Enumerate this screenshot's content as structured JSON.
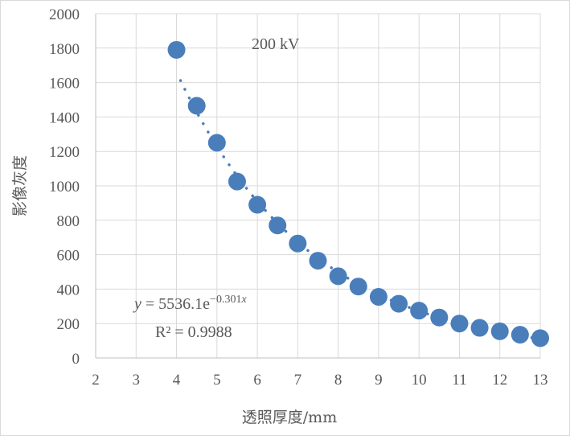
{
  "chart_data": {
    "type": "scatter",
    "title": "",
    "xlabel": "透照厚度/mm",
    "ylabel": "影像灰度",
    "xlim": [
      2,
      13
    ],
    "ylim": [
      0,
      2000
    ],
    "x_ticks": [
      2,
      3,
      4,
      5,
      6,
      7,
      8,
      9,
      10,
      11,
      12,
      13
    ],
    "y_ticks": [
      0,
      200,
      400,
      600,
      800,
      1000,
      1200,
      1400,
      1600,
      1800,
      2000
    ],
    "grid": true,
    "legend": "none",
    "series": [
      {
        "color": "#4a7ebb",
        "marker": "circle",
        "x": [
          4,
          4.5,
          5,
          5.5,
          6,
          6.5,
          7,
          7.5,
          8,
          8.5,
          9,
          9.5,
          10,
          10.5,
          11,
          11.5,
          12,
          12.5,
          13
        ],
        "y": [
          1790,
          1465,
          1250,
          1025,
          890,
          770,
          665,
          565,
          475,
          415,
          355,
          315,
          275,
          235,
          200,
          175,
          155,
          135,
          115
        ]
      }
    ],
    "trendline": {
      "type": "exponential",
      "a": 5536.1,
      "b": -0.301,
      "x_range": [
        4.1,
        13
      ],
      "color": "#4a7ebb",
      "style": "dotted"
    },
    "annotations": {
      "voltage": "200 kV",
      "equation_lhs": "y",
      "equation_mid": " = 5536.1e",
      "equation_exp": "−0.301",
      "equation_exp_var": "x",
      "r_squared": "R² = 0.9988"
    }
  }
}
